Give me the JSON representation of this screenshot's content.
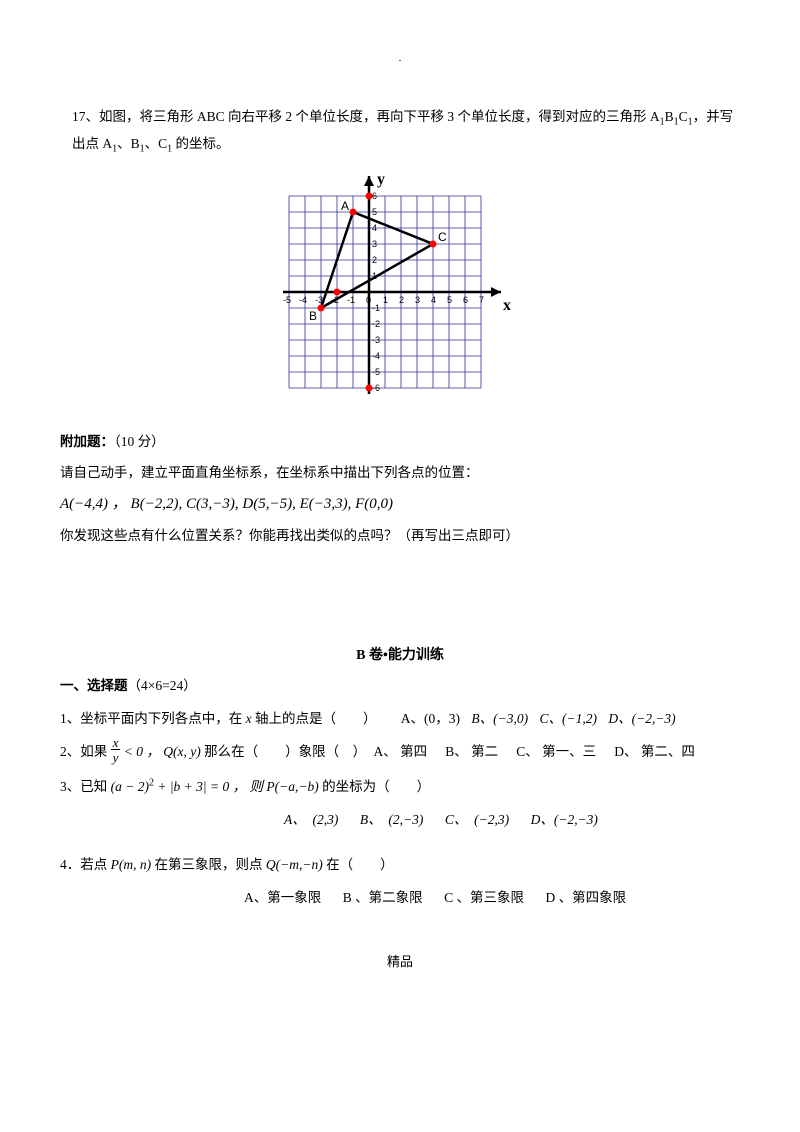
{
  "top_dot": ".",
  "q17": {
    "prefix": "17、如图，将三角形 ABC 向右平移 2 个单位长度，再向下平移 3 个单位长度，得到对应的三角形 A",
    "sub1": "1",
    "mid1": "B",
    "sub2": "1",
    "mid2": "C",
    "sub3": "1",
    "suffix": "，并写出点 A",
    "sub4": "1",
    "sep1": "、B",
    "sub5": "1",
    "sep2": "、C",
    "sub6": "1",
    "tail": " 的坐标。"
  },
  "graph": {
    "xmin": -5,
    "xmax": 7,
    "ymin": -6,
    "ymax": 6,
    "cell": 16,
    "grid_color": "#2f2f9f",
    "axis_color": "#000000",
    "label_x": "x",
    "label_y": "y",
    "tick_font": 9,
    "tri": {
      "A": [
        -1,
        5
      ],
      "B": [
        -3,
        -1
      ],
      "C": [
        4,
        3
      ]
    },
    "xticks": [
      -5,
      -4,
      -3,
      -2,
      -1,
      0,
      1,
      2,
      3,
      4,
      5,
      6,
      7
    ],
    "yticks": [
      -6,
      -5,
      -4,
      -3,
      -2,
      -1,
      1,
      2,
      3,
      4,
      5,
      6
    ],
    "point_color": "#ff0000",
    "line_color": "#000000",
    "label_A": "A",
    "label_B": "B",
    "label_C": "C"
  },
  "bonus": {
    "title": "附加题：",
    "score": "（10 分）",
    "l1": "请自己动手，建立平面直角坐标系，在坐标系中描出下列各点的位置：",
    "points": "A(−4,4)  ，  B(−2,2), C(3,−3), D(5,−5), E(−3,3), F(0,0)",
    "l2": "你发现这些点有什么位置关系？你能再找出类似的点吗？（再写出三点即可）"
  },
  "bsection": {
    "title": "B 卷•能力训练",
    "mc_header": "一、选择题",
    "mc_count": "（4×6=24）"
  },
  "b1": {
    "stem_a": "1、坐标平面内下列各点中，在 ",
    "xvar": "x",
    "stem_b": " 轴上的点是（　　）",
    "optA": "A、(0，3)",
    "optB": "B、(−3,0)",
    "optC": "C、(−1,2)",
    "optD": "D、(−2,−3)"
  },
  "b2": {
    "stem_a": "2、如果 ",
    "frac_num": "x",
    "frac_den": "y",
    "lt": " < 0 ， ",
    "Q": "Q(x, y)",
    "stem_b": " 那么在（　　）象限（　）",
    "optA": "A、 第四",
    "optB": "B、 第二",
    "optC": "C、 第一、三",
    "optD": "D、 第二、四"
  },
  "b3": {
    "stem_a": "3、已知 ",
    "expr": "(a − 2)",
    "sq": "2",
    "plus": " + |b + 3| = 0 ， 则 ",
    "P": "P(−a,−b)",
    "stem_b": " 的坐标为（　　）",
    "optA": "A、　(2,3)",
    "optB": "B、　(2,−3)",
    "optC": "C、　(−2,3)",
    "optD": "D、(−2,−3)"
  },
  "b4": {
    "stem_a": "4．若点 ",
    "P": "P(m, n)",
    "stem_b": " 在第三象限，则点 ",
    "Q": "Q(−m,−n)",
    "stem_c": " 在（　　）",
    "optA": "A、第一象限",
    "optB": "B 、第二象限",
    "optC": "C 、第三象限",
    "optD": "D 、第四象限"
  },
  "footer": "精品"
}
